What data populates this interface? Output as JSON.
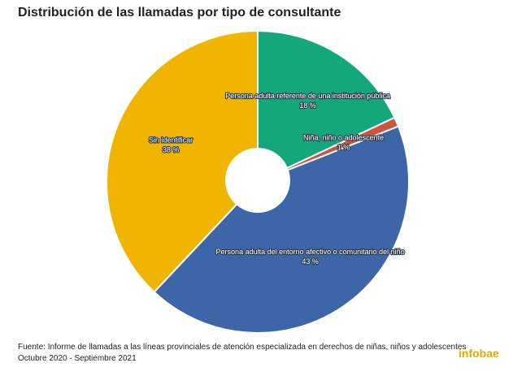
{
  "chart_data": {
    "type": "pie",
    "title": "Distribución de las llamadas por tipo de consultante",
    "categories": [
      "Persona adulta referente de una institución pública",
      "Niña, niño o adolescente",
      "Persona adulta del entorno afectivo o comunitario del niño",
      "Sin identificar"
    ],
    "values": [
      18,
      1,
      43,
      38
    ],
    "value_labels": [
      "18 %",
      "1 %",
      "43 %",
      "38 %"
    ],
    "colors": [
      "#14a77b",
      "#cc533c",
      "#3d66a9",
      "#f0b501"
    ],
    "source": [
      "Fuente: Informe de llamadas a las líneas provinciales de atención especializada en derechos de niñas, niños y adolescentes",
      "Octubre 2020 - Septiembre 2021"
    ],
    "logo": "infobae"
  }
}
